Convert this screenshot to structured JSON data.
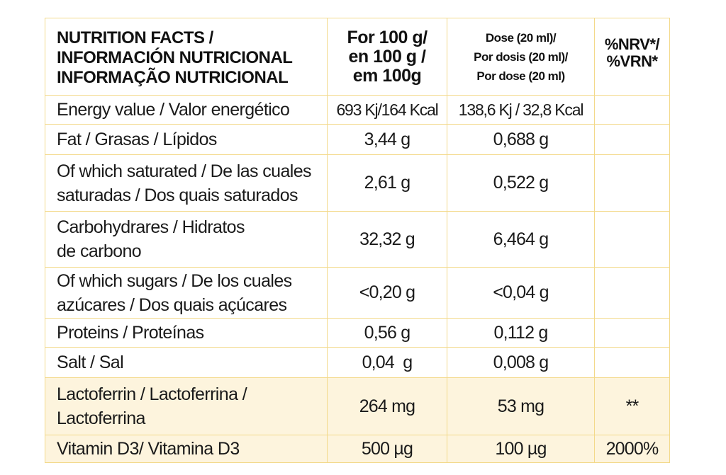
{
  "header": {
    "label_lines": [
      "NUTRITION FACTS /",
      "INFORMACIÓN NUTRICIONAL",
      "INFORMAÇÃO NUTRICIONAL"
    ],
    "per100_lines": [
      "For 100 g/",
      "en 100 g /",
      "em 100g"
    ],
    "dose_lines": [
      "Dose (20 ml)/",
      "Por dosis (20 ml)/",
      "Por dose (20 ml)"
    ],
    "nrv_lines": [
      "%NRV*/",
      "%VRN*"
    ]
  },
  "rows": [
    {
      "label_lines": [
        "Energy value / Valor energético"
      ],
      "per100": "693 Kj/164 Kcal",
      "dose": "138,6 Kj / 32,8 Kcal",
      "nrv": ""
    },
    {
      "label_lines": [
        "Fat / Grasas / Lípidos"
      ],
      "per100": "3,44 g",
      "dose": "0,688 g",
      "nrv": ""
    },
    {
      "label_lines": [
        "Of which saturated / De las cuales",
        "saturadas / Dos quais saturados"
      ],
      "per100": "2,61 g",
      "dose": "0,522 g",
      "nrv": ""
    },
    {
      "label_lines": [
        "Carbohydrares / Hidratos",
        "de carbono"
      ],
      "per100": "32,32 g",
      "dose": "6,464 g",
      "nrv": ""
    },
    {
      "label_lines": [
        "Of which  sugars / De los cuales",
        "azúcares / Dos quais açúcares"
      ],
      "per100": "<0,20 g",
      "dose": "<0,04 g",
      "nrv": ""
    },
    {
      "label_lines": [
        "Proteins / Proteínas"
      ],
      "per100": "0,56 g",
      "dose": "0,112 g",
      "nrv": ""
    },
    {
      "label_lines": [
        "Salt / Sal"
      ],
      "per100": "0,04  g",
      "dose": "0,008 g",
      "nrv": ""
    },
    {
      "label_lines": [
        "Lactoferrin / Lactoferrina /",
        "Lactoferrina"
      ],
      "per100": "264 mg",
      "dose": "53 mg",
      "nrv": "**"
    },
    {
      "label_lines": [
        "Vitamin D3/ Vitamina D3"
      ],
      "per100": "500 µg",
      "dose": "100 µg",
      "nrv": "2000%"
    }
  ],
  "colors": {
    "border": "#f3d98a",
    "highlight_row": "#fdf4dd"
  }
}
